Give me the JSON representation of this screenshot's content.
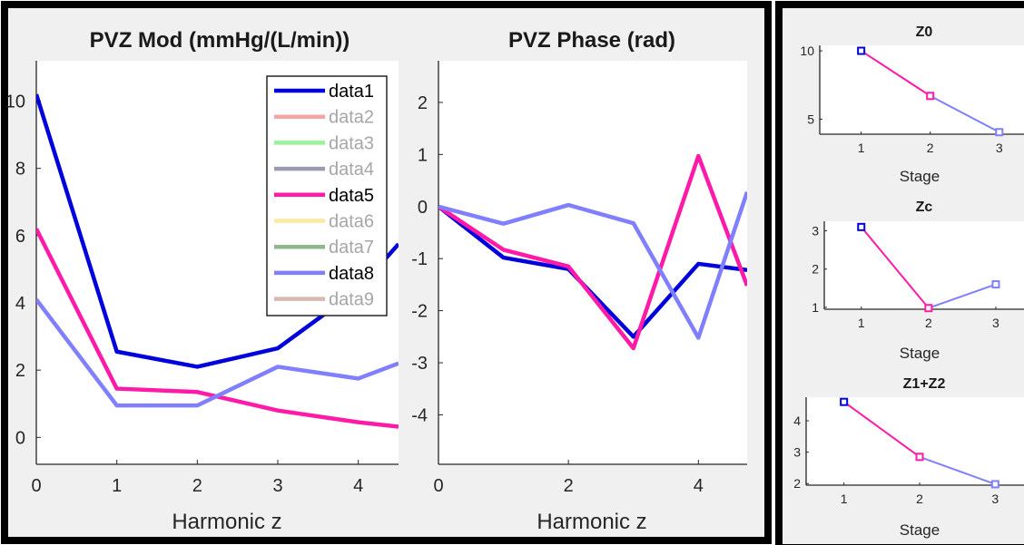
{
  "chart_data": [
    {
      "type": "line",
      "title": "PVZ Mod (mmHg/(L/min))",
      "xlabel": "Harmonic z",
      "ylabel": "",
      "xlim": [
        0,
        4.5
      ],
      "ylim": [
        -0.8,
        11.2
      ],
      "xticks": [
        0,
        1,
        2,
        3,
        4
      ],
      "yticks": [
        0,
        2,
        4,
        6,
        8,
        10
      ],
      "grid": false,
      "legend_position": "top-right",
      "legend": [
        {
          "name": "data1",
          "color": "#0000dd",
          "active": true
        },
        {
          "name": "data2",
          "color": "#f4a6a6",
          "active": false
        },
        {
          "name": "data3",
          "color": "#9af29a",
          "active": false
        },
        {
          "name": "data4",
          "color": "#9a9ab4",
          "active": false
        },
        {
          "name": "data5",
          "color": "#ff1aa8",
          "active": true
        },
        {
          "name": "data6",
          "color": "#fbe9a0",
          "active": false
        },
        {
          "name": "data7",
          "color": "#8bb98b",
          "active": false
        },
        {
          "name": "data8",
          "color": "#7f7fff",
          "active": true
        },
        {
          "name": "data9",
          "color": "#d9b8b0",
          "active": false
        }
      ],
      "series": [
        {
          "name": "data1",
          "color": "#0000dd",
          "x": [
            0,
            1,
            2,
            3,
            4,
            4.5
          ],
          "values": [
            10.2,
            2.55,
            2.1,
            2.65,
            4.4,
            5.75
          ]
        },
        {
          "name": "data5",
          "color": "#ff1aa8",
          "x": [
            0,
            1,
            2,
            3,
            4,
            4.5
          ],
          "values": [
            6.2,
            1.45,
            1.35,
            0.8,
            0.45,
            0.32
          ]
        },
        {
          "name": "data8",
          "color": "#7f7fff",
          "x": [
            0,
            1,
            2,
            3,
            4,
            4.5
          ],
          "values": [
            4.1,
            0.95,
            0.95,
            2.1,
            1.75,
            2.2
          ]
        }
      ]
    },
    {
      "type": "line",
      "title": "PVZ Phase (rad)",
      "xlabel": "Harmonic z",
      "ylabel": "",
      "xlim": [
        0,
        4.75
      ],
      "ylim": [
        -4.95,
        2.8
      ],
      "xticks": [
        0,
        2,
        4
      ],
      "yticks": [
        2,
        1,
        0,
        -1,
        -2,
        -3,
        -4
      ],
      "grid": false,
      "series": [
        {
          "name": "data1",
          "color": "#0000dd",
          "x": [
            0,
            1,
            2,
            3,
            4,
            4.75
          ],
          "values": [
            0,
            -0.98,
            -1.2,
            -2.5,
            -1.1,
            -1.22
          ]
        },
        {
          "name": "data5",
          "color": "#ff1aa8",
          "x": [
            0,
            1,
            2,
            3,
            4,
            4.75
          ],
          "values": [
            0,
            -0.83,
            -1.15,
            -2.72,
            0.97,
            -1.52
          ]
        },
        {
          "name": "data8",
          "color": "#7f7fff",
          "x": [
            0,
            1,
            2,
            3,
            4,
            4.75
          ],
          "values": [
            0,
            -0.33,
            0.03,
            -0.32,
            -2.52,
            0.28
          ]
        }
      ]
    },
    {
      "type": "line",
      "title": "Z0",
      "xlabel": "Stage",
      "xlim": [
        0.4,
        3.45
      ],
      "ylim": [
        3.9,
        10.4
      ],
      "xticks": [
        1,
        2,
        3
      ],
      "yticks": [
        5,
        10
      ],
      "points": [
        {
          "x": 1,
          "y": 10,
          "color": "#0000dd"
        },
        {
          "x": 2,
          "y": 6.7,
          "color": "#ff1aa8"
        },
        {
          "x": 3,
          "y": 4.05,
          "color": "#7f7fff"
        }
      ]
    },
    {
      "type": "line",
      "title": "Zc",
      "xlabel": "Stage",
      "xlim": [
        0.45,
        3.5
      ],
      "ylim": [
        0.95,
        3.25
      ],
      "xticks": [
        1,
        2,
        3
      ],
      "yticks": [
        1,
        2,
        3
      ],
      "points": [
        {
          "x": 1,
          "y": 3.1,
          "color": "#0000dd"
        },
        {
          "x": 2,
          "y": 0.98,
          "color": "#ff1aa8"
        },
        {
          "x": 3,
          "y": 1.6,
          "color": "#7f7fff"
        }
      ]
    },
    {
      "type": "line",
      "title": "Z1+Z2",
      "xlabel": "Stage",
      "xlim": [
        0.5,
        3.5
      ],
      "ylim": [
        1.95,
        4.75
      ],
      "xticks": [
        1,
        2,
        3
      ],
      "yticks": [
        2,
        3,
        4
      ],
      "points": [
        {
          "x": 1,
          "y": 4.6,
          "color": "#0000dd"
        },
        {
          "x": 2,
          "y": 2.85,
          "color": "#ff1aa8"
        },
        {
          "x": 3,
          "y": 1.98,
          "color": "#7f7fff"
        }
      ]
    }
  ]
}
